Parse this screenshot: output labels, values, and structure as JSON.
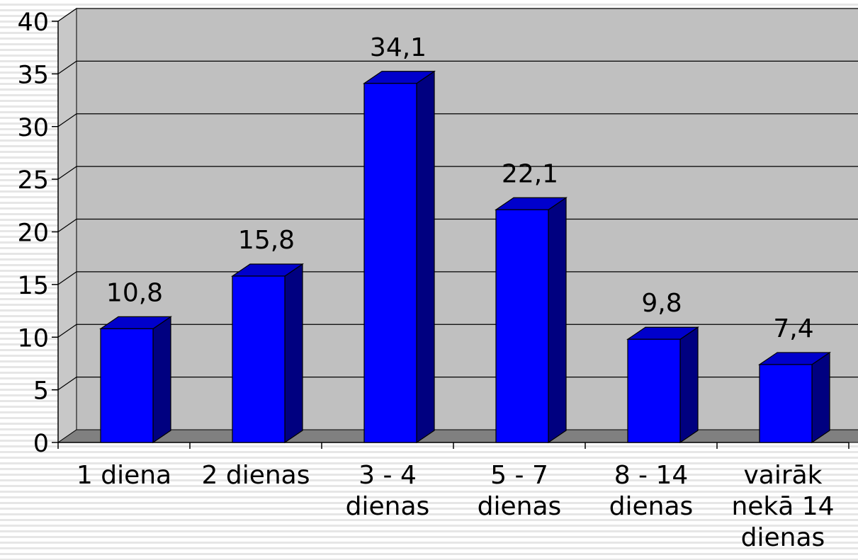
{
  "chart_data": {
    "type": "bar",
    "style": "3d-column",
    "categories": [
      [
        "1 diena"
      ],
      [
        "2 dienas"
      ],
      [
        "3 - 4",
        "dienas"
      ],
      [
        "5 - 7",
        "dienas"
      ],
      [
        "8 - 14",
        "dienas"
      ],
      [
        "vairāk",
        "nekā 14",
        "dienas"
      ]
    ],
    "values": [
      10.8,
      15.8,
      34.1,
      22.1,
      9.8,
      7.4
    ],
    "data_labels": [
      "10,8",
      "15,8",
      "34,1",
      "22,1",
      "9,8",
      "7,4"
    ],
    "yticks": [
      "0",
      "5",
      "10",
      "15",
      "20",
      "25",
      "30",
      "35",
      "40"
    ],
    "ylim": [
      0,
      40
    ],
    "grid": true,
    "colors": {
      "bar_front": "#0000ff",
      "bar_top": "#0000cc",
      "bar_side": "#000080",
      "wall": "#c0c0c0",
      "floor": "#808080"
    }
  }
}
